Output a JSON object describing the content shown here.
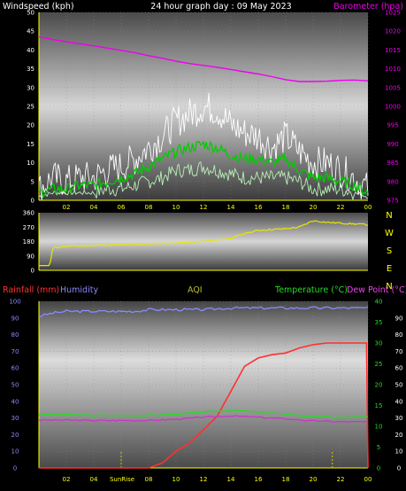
{
  "colors": {
    "windspeed": "#ffffff",
    "wind_avg": "#00cc00",
    "wind_min": "#b8f0b8",
    "barometer": "#ee00ee",
    "direction": "#e6e600",
    "rainfall": "#ff3030",
    "humidity": "#8a8aff",
    "temperature": "#22dd22",
    "dewpoint": "#cc33cc",
    "aqi": "#bbbb33",
    "axis": "#ffff00",
    "sunrise": "#cccc00"
  },
  "chart_data": [
    {
      "type": "line",
      "title": "24 hour graph day : 09 May 2023",
      "y_left_label": "Windspeed (kph)",
      "y_right_label": "Barometer (hpa)",
      "ylim_left": [
        0,
        50
      ],
      "yticks_left": [
        "0",
        "5",
        "10",
        "15",
        "20",
        "25",
        "30",
        "35",
        "40",
        "45",
        "50"
      ],
      "ylim_right": [
        975,
        1025
      ],
      "yticks_right": [
        "975",
        "980",
        "985",
        "990",
        "995",
        "1000",
        "1005",
        "1010",
        "1015",
        "1020",
        "1025"
      ],
      "x_ticks": [
        "02",
        "04",
        "06",
        "08",
        "10",
        "12",
        "14",
        "16",
        "18",
        "20",
        "22",
        "00"
      ],
      "series": [
        {
          "name": "Barometer (hpa)",
          "axis": "right",
          "x": [
            0,
            1,
            2,
            3,
            4,
            5,
            6,
            7,
            8,
            9,
            10,
            11,
            12,
            13,
            14,
            15,
            16,
            17,
            18,
            19,
            20,
            21,
            22,
            23,
            24
          ],
          "values": [
            1018.5,
            1017.8,
            1017.2,
            1016.6,
            1016.1,
            1015.5,
            1014.9,
            1014.3,
            1013.5,
            1012.8,
            1012.0,
            1011.4,
            1010.9,
            1010.4,
            1009.8,
            1009.2,
            1008.6,
            1007.9,
            1007.1,
            1006.6,
            1006.6,
            1006.7,
            1006.9,
            1007.0,
            1006.8
          ]
        },
        {
          "name": "Windspeed gust",
          "axis": "left",
          "x": [
            0,
            1,
            2,
            3,
            4,
            5,
            6,
            7,
            8,
            9,
            10,
            11,
            12,
            13,
            14,
            15,
            16,
            17,
            18,
            19,
            20,
            21,
            22,
            23,
            24
          ],
          "values": [
            3,
            6,
            5,
            6,
            6,
            8,
            9,
            11,
            14,
            17,
            21,
            23,
            25,
            24,
            20,
            18,
            17,
            14,
            17,
            13,
            10,
            10,
            8,
            6,
            3
          ]
        },
        {
          "name": "Windspeed average",
          "axis": "left",
          "x": [
            0,
            1,
            2,
            3,
            4,
            5,
            6,
            7,
            8,
            9,
            10,
            11,
            12,
            13,
            14,
            15,
            16,
            17,
            18,
            19,
            20,
            21,
            22,
            23,
            24
          ],
          "values": [
            2,
            3,
            3,
            4,
            4,
            5,
            6,
            7,
            9,
            11,
            13,
            14,
            15,
            14,
            12,
            11,
            11,
            10,
            11,
            8,
            6,
            6,
            5,
            4,
            2
          ]
        },
        {
          "name": "Windspeed minimum",
          "axis": "left",
          "x": [
            0,
            1,
            2,
            3,
            4,
            5,
            6,
            7,
            8,
            9,
            10,
            11,
            12,
            13,
            14,
            15,
            16,
            17,
            18,
            19,
            20,
            21,
            22,
            23,
            24
          ],
          "values": [
            1,
            2,
            2,
            2,
            2,
            3,
            3,
            4,
            5,
            6,
            8,
            8,
            9,
            8,
            7,
            6,
            6,
            6,
            6,
            5,
            3,
            3,
            3,
            2,
            1
          ]
        }
      ]
    },
    {
      "type": "line",
      "y_right_labels": [
        "N",
        "W",
        "S",
        "E",
        "N"
      ],
      "ylim": [
        0,
        360
      ],
      "yticks": [
        "0",
        "90",
        "180",
        "270",
        "360"
      ],
      "series": [
        {
          "name": "Wind direction",
          "x": [
            0,
            0.8,
            1,
            2,
            4,
            6,
            8,
            10,
            12,
            14,
            15,
            16,
            17,
            18,
            19,
            20,
            21,
            22,
            23,
            24
          ],
          "values": [
            30,
            30,
            140,
            150,
            155,
            160,
            165,
            170,
            180,
            200,
            230,
            250,
            255,
            260,
            270,
            310,
            300,
            295,
            290,
            285
          ]
        }
      ]
    },
    {
      "type": "line",
      "labels_top": {
        "rainfall": "Rainfall (mm)",
        "humidity": "Humidity",
        "aqi": "AQI",
        "temperature": "Temperature (°C)",
        "dewpoint": "Dew Point (°C)"
      },
      "ylim_rain": [
        0,
        100
      ],
      "yticks_rain": [
        "0",
        "10",
        "20",
        "30",
        "40",
        "50",
        "60",
        "70",
        "80",
        "90",
        "100"
      ],
      "ylim_temp": [
        0,
        40
      ],
      "yticks_temp": [
        "0",
        "5",
        "10",
        "15",
        "20",
        "25",
        "30",
        "35",
        "40"
      ],
      "yticks_hum": [
        "0",
        "10",
        "20",
        "30",
        "40",
        "50",
        "60",
        "70",
        "80",
        "90"
      ],
      "x_ticks": [
        "02",
        "04",
        "06",
        "08",
        "10",
        "12",
        "14",
        "16",
        "18",
        "20",
        "22",
        "00"
      ],
      "sunrise_label": "SunRise",
      "series": [
        {
          "name": "Humidity",
          "x": [
            0,
            1,
            2,
            3,
            4,
            5,
            6,
            7,
            8,
            10,
            12,
            14,
            16,
            18,
            20,
            22,
            24
          ],
          "values": [
            91,
            93,
            94,
            94,
            94,
            94,
            94,
            94,
            95,
            95,
            95,
            96,
            96,
            96,
            96,
            96,
            96
          ]
        },
        {
          "name": "Rainfall",
          "x": [
            0,
            6,
            8,
            9,
            10,
            11,
            12,
            13,
            14,
            15,
            16,
            17,
            18,
            19,
            20,
            21,
            22,
            23,
            23.9,
            24
          ],
          "values": [
            0,
            0,
            0,
            3,
            10,
            15,
            23,
            31,
            46,
            61,
            66,
            68,
            69,
            72,
            74,
            75,
            75,
            75,
            75,
            0
          ]
        },
        {
          "name": "Temperature",
          "x": [
            0,
            2,
            4,
            6,
            8,
            10,
            12,
            14,
            16,
            18,
            20,
            22,
            24
          ],
          "values": [
            12.8,
            12.8,
            12.6,
            12.6,
            12.6,
            12.9,
            13.4,
            13.8,
            13.4,
            12.9,
            12.3,
            12.1,
            12.2
          ]
        },
        {
          "name": "Dew Point",
          "x": [
            0,
            2,
            4,
            6,
            8,
            10,
            12,
            14,
            16,
            18,
            20,
            22,
            24
          ],
          "values": [
            11.5,
            11.5,
            11.4,
            11.4,
            11.4,
            11.7,
            12.2,
            12.5,
            12.2,
            11.8,
            11.3,
            11.1,
            11.1
          ]
        }
      ]
    }
  ]
}
